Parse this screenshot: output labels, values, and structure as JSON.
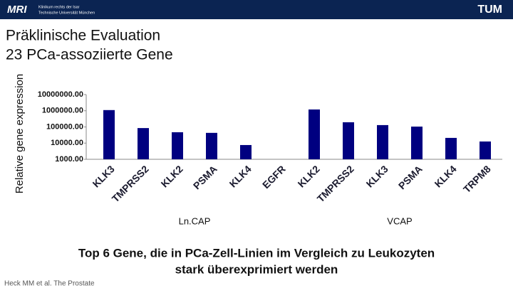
{
  "header": {
    "logo_left": "MRI",
    "institution": [
      "Klinikum rechts der Isar",
      "Technische Universität München"
    ],
    "logo_right": "TUM"
  },
  "slide": {
    "title": [
      "Präklinische Evaluation",
      "23 PCa-assoziierte Gene"
    ],
    "caption": [
      "Top 6 Gene, die in PCa-Zell-Linien im Vergleich zu Leukozyten",
      "stark überexprimiert werden"
    ],
    "footer": "Heck MM et al. The Prostate"
  },
  "chart_data": {
    "type": "bar",
    "ylabel": "Relative gene expression",
    "log_y": true,
    "grid": false,
    "categories": [
      "KLK3",
      "TMPRSS2",
      "KLK2",
      "PSMA",
      "KLK4",
      "EGFR",
      "KLK2",
      "TMPRSS2",
      "KLK3",
      "PSMA",
      "KLK4",
      "TRPM8"
    ],
    "values": [
      1100000,
      85000,
      47000,
      43000,
      7600,
      null,
      1200000,
      195000,
      130000,
      105000,
      21000,
      12600
    ],
    "group_labels": [
      "Ln.CAP",
      "VCAP"
    ],
    "color": "#000080",
    "ylim": [
      1000,
      10000000
    ],
    "yticks": [
      {
        "value": 1000,
        "label": "1000.00"
      },
      {
        "value": 10000,
        "label": "10000.00"
      },
      {
        "value": 100000,
        "label": "100000.00"
      },
      {
        "value": 1000000,
        "label": "1000000.00"
      },
      {
        "value": 10000000,
        "label": "10000000.00"
      }
    ]
  }
}
